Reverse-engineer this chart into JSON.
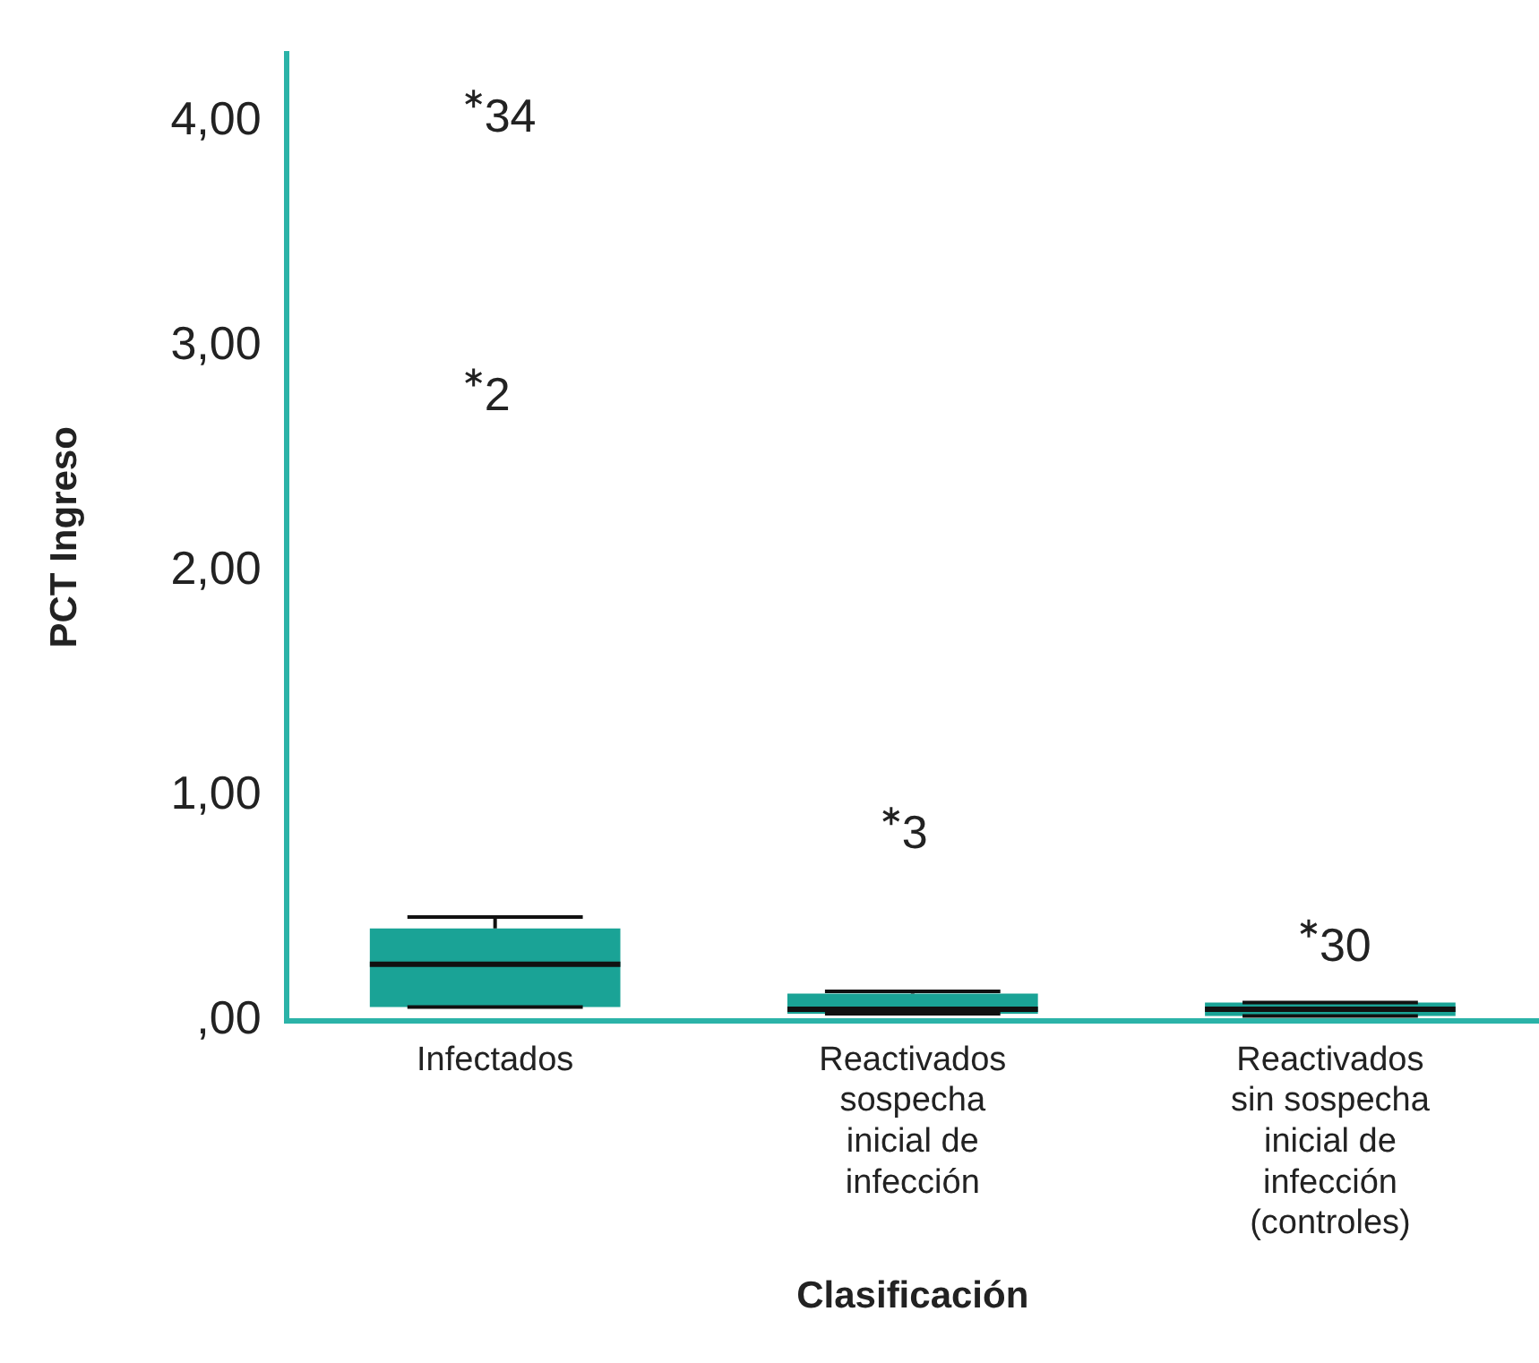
{
  "chart_data": {
    "type": "box",
    "xlabel": "Clasificación",
    "ylabel": "PCT Ingreso",
    "categories": [
      "Infectados",
      "Reactivados sospecha inicial de infección",
      "Reactivados sin sospecha inicial de infección (controles)"
    ],
    "series": [
      {
        "color": "#1aa396",
        "boxes": [
          {
            "low": 0.06,
            "q1": 0.06,
            "median": 0.25,
            "q3": 0.41,
            "high": 0.46,
            "outliers": [
              4.1,
              2.86
            ]
          },
          {
            "low": 0.03,
            "q1": 0.03,
            "median": 0.05,
            "q3": 0.12,
            "high": 0.13,
            "outliers": [
              0.91
            ]
          },
          {
            "low": 0.02,
            "q1": 0.02,
            "median": 0.05,
            "q3": 0.08,
            "high": 0.08,
            "outliers": [
              0.41
            ]
          }
        ]
      }
    ],
    "ylim": [
      0,
      4.3
    ],
    "yticks": [
      {
        "value": 0,
        "label": ",00"
      },
      {
        "value": 1,
        "label": "1,00"
      },
      {
        "value": 2,
        "label": "2,00"
      },
      {
        "value": 3,
        "label": "3,00"
      },
      {
        "value": 4,
        "label": "4,00"
      }
    ],
    "annotations": [
      "34",
      "2",
      "3",
      "30"
    ],
    "grid": false,
    "legend": false,
    "marker": "star"
  }
}
